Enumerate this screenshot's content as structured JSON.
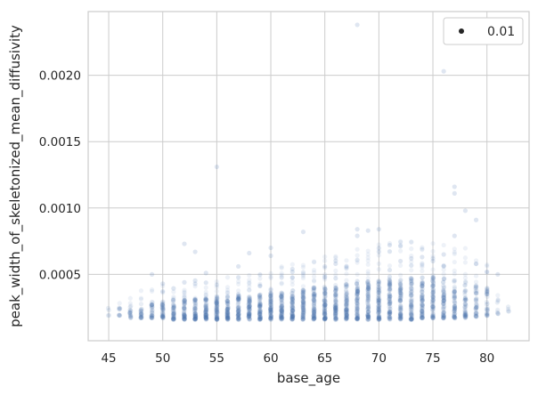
{
  "chart_data": {
    "type": "scatter",
    "xlabel": "base_age",
    "ylabel": "peak_width_of_skeletonized_mean_diffusivity",
    "xlim": [
      43.1,
      83.9
    ],
    "ylim": [
      0.0,
      0.00248
    ],
    "xticks": [
      45,
      50,
      55,
      60,
      65,
      70,
      75,
      80
    ],
    "xtick_labels": [
      "45",
      "50",
      "55",
      "60",
      "65",
      "70",
      "75",
      "80"
    ],
    "yticks": [
      0.0005,
      0.001,
      0.0015,
      0.002
    ],
    "ytick_labels": [
      "0.0005",
      "0.0010",
      "0.0015",
      "0.0020"
    ],
    "grid": true,
    "legend": {
      "position": "top-right",
      "entries": [
        "0.01"
      ]
    },
    "series": [
      {
        "name": "0.01",
        "color": "#4c72b0",
        "alpha": 0.12,
        "x_values": [
          45,
          46,
          47,
          48,
          49,
          50,
          51,
          52,
          53,
          54,
          55,
          56,
          57,
          58,
          59,
          60,
          61,
          62,
          63,
          64,
          65,
          66,
          67,
          68,
          69,
          70,
          71,
          72,
          73,
          74,
          75,
          76,
          77,
          78,
          79,
          80,
          81,
          82
        ],
        "typical_range_bottom": [
          0.00019,
          0.00018,
          0.00017,
          0.00017,
          0.00017,
          0.00017,
          0.00016,
          0.00016,
          0.00016,
          0.00016,
          0.00016,
          0.00016,
          0.00016,
          0.00016,
          0.00016,
          0.00016,
          0.00016,
          0.00016,
          0.00016,
          0.00016,
          0.00016,
          0.00016,
          0.00016,
          0.00016,
          0.00016,
          0.00016,
          0.00016,
          0.00016,
          0.00016,
          0.00017,
          0.00017,
          0.00017,
          0.00017,
          0.00017,
          0.00018,
          0.00019,
          0.0002,
          0.00022
        ],
        "typical_range_top": [
          0.00025,
          0.00025,
          0.00027,
          0.00028,
          0.00029,
          0.0003,
          0.00031,
          0.00031,
          0.00032,
          0.00032,
          0.00033,
          0.00033,
          0.00034,
          0.00034,
          0.00035,
          0.00036,
          0.00037,
          0.00038,
          0.00039,
          0.0004,
          0.00041,
          0.00042,
          0.00043,
          0.00044,
          0.00045,
          0.00046,
          0.00047,
          0.00047,
          0.00048,
          0.00048,
          0.00048,
          0.00047,
          0.00046,
          0.00045,
          0.00043,
          0.0004,
          0.00032,
          0.00027
        ],
        "points_per_age": [
          4,
          10,
          18,
          24,
          30,
          38,
          44,
          50,
          56,
          60,
          62,
          62,
          60,
          62,
          64,
          66,
          68,
          70,
          72,
          72,
          74,
          74,
          74,
          74,
          74,
          74,
          72,
          72,
          70,
          70,
          66,
          62,
          56,
          48,
          40,
          30,
          8,
          4
        ],
        "outliers": [
          {
            "x": 68,
            "y": 0.00238
          },
          {
            "x": 76,
            "y": 0.00203
          },
          {
            "x": 55,
            "y": 0.00131
          },
          {
            "x": 77,
            "y": 0.00116
          },
          {
            "x": 77,
            "y": 0.00111
          },
          {
            "x": 78,
            "y": 0.00098
          },
          {
            "x": 79,
            "y": 0.00091
          },
          {
            "x": 68,
            "y": 0.00084
          },
          {
            "x": 70,
            "y": 0.00084
          },
          {
            "x": 69,
            "y": 0.00083
          },
          {
            "x": 63,
            "y": 0.00082
          },
          {
            "x": 68,
            "y": 0.00079
          },
          {
            "x": 77,
            "y": 0.00079
          },
          {
            "x": 52,
            "y": 0.00073
          },
          {
            "x": 71,
            "y": 0.00072
          },
          {
            "x": 60,
            "y": 0.0007
          },
          {
            "x": 53,
            "y": 0.00067
          },
          {
            "x": 58,
            "y": 0.00066
          },
          {
            "x": 76,
            "y": 0.00065
          },
          {
            "x": 60,
            "y": 0.00064
          },
          {
            "x": 74,
            "y": 0.00063
          },
          {
            "x": 57,
            "y": 0.00056
          },
          {
            "x": 66,
            "y": 0.00058
          },
          {
            "x": 72,
            "y": 0.0006
          },
          {
            "x": 80,
            "y": 0.00052
          },
          {
            "x": 49,
            "y": 0.0005
          },
          {
            "x": 81,
            "y": 0.0005
          },
          {
            "x": 54,
            "y": 0.00051
          },
          {
            "x": 62,
            "y": 0.00054
          },
          {
            "x": 65,
            "y": 0.00056
          },
          {
            "x": 73,
            "y": 0.00062
          },
          {
            "x": 75,
            "y": 0.0006
          },
          {
            "x": 79,
            "y": 0.00058
          },
          {
            "x": 52,
            "y": 0.00044
          },
          {
            "x": 50,
            "y": 0.00043
          }
        ]
      }
    ]
  }
}
